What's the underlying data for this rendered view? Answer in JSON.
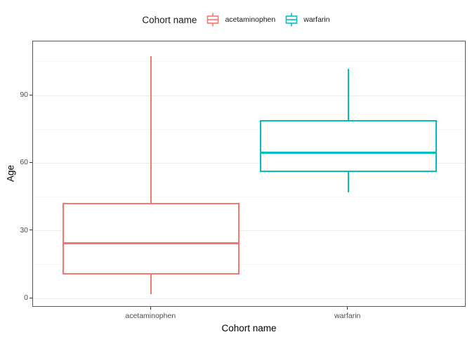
{
  "legend": {
    "title": "Cohort name",
    "items": [
      {
        "label": "acetaminophen",
        "color": "#F8766D"
      },
      {
        "label": "warfarin",
        "color": "#00BFC4"
      }
    ]
  },
  "chart_data": {
    "type": "boxplot",
    "title": "",
    "xlabel": "Cohort name",
    "ylabel": "Age",
    "categories": [
      "acetaminophen",
      "warfarin"
    ],
    "series": [
      {
        "name": "acetaminophen",
        "color": "#F8766D",
        "min": 2,
        "q1": 10.5,
        "median": 24.5,
        "q3": 42.5,
        "max": 107.5
      },
      {
        "name": "warfarin",
        "color": "#00BFC4",
        "min": 47,
        "q1": 56,
        "median": 64.5,
        "q3": 79,
        "max": 102
      }
    ],
    "ylim": [
      -4,
      114
    ],
    "yticks_major": [
      0,
      30,
      60,
      90
    ],
    "yticks_minor": [
      15,
      45,
      75,
      105
    ],
    "box_unit_width": 0.9,
    "grid": true,
    "legend_position": "top"
  },
  "colors": {
    "background": "#ffffff",
    "panel_border": "#595959",
    "grid_major": "#ebebeb",
    "grid_minor": "#f5f5f5",
    "tick_mark": "#333333",
    "tick_label": "#4d4d4d",
    "title_text": "#000000"
  }
}
